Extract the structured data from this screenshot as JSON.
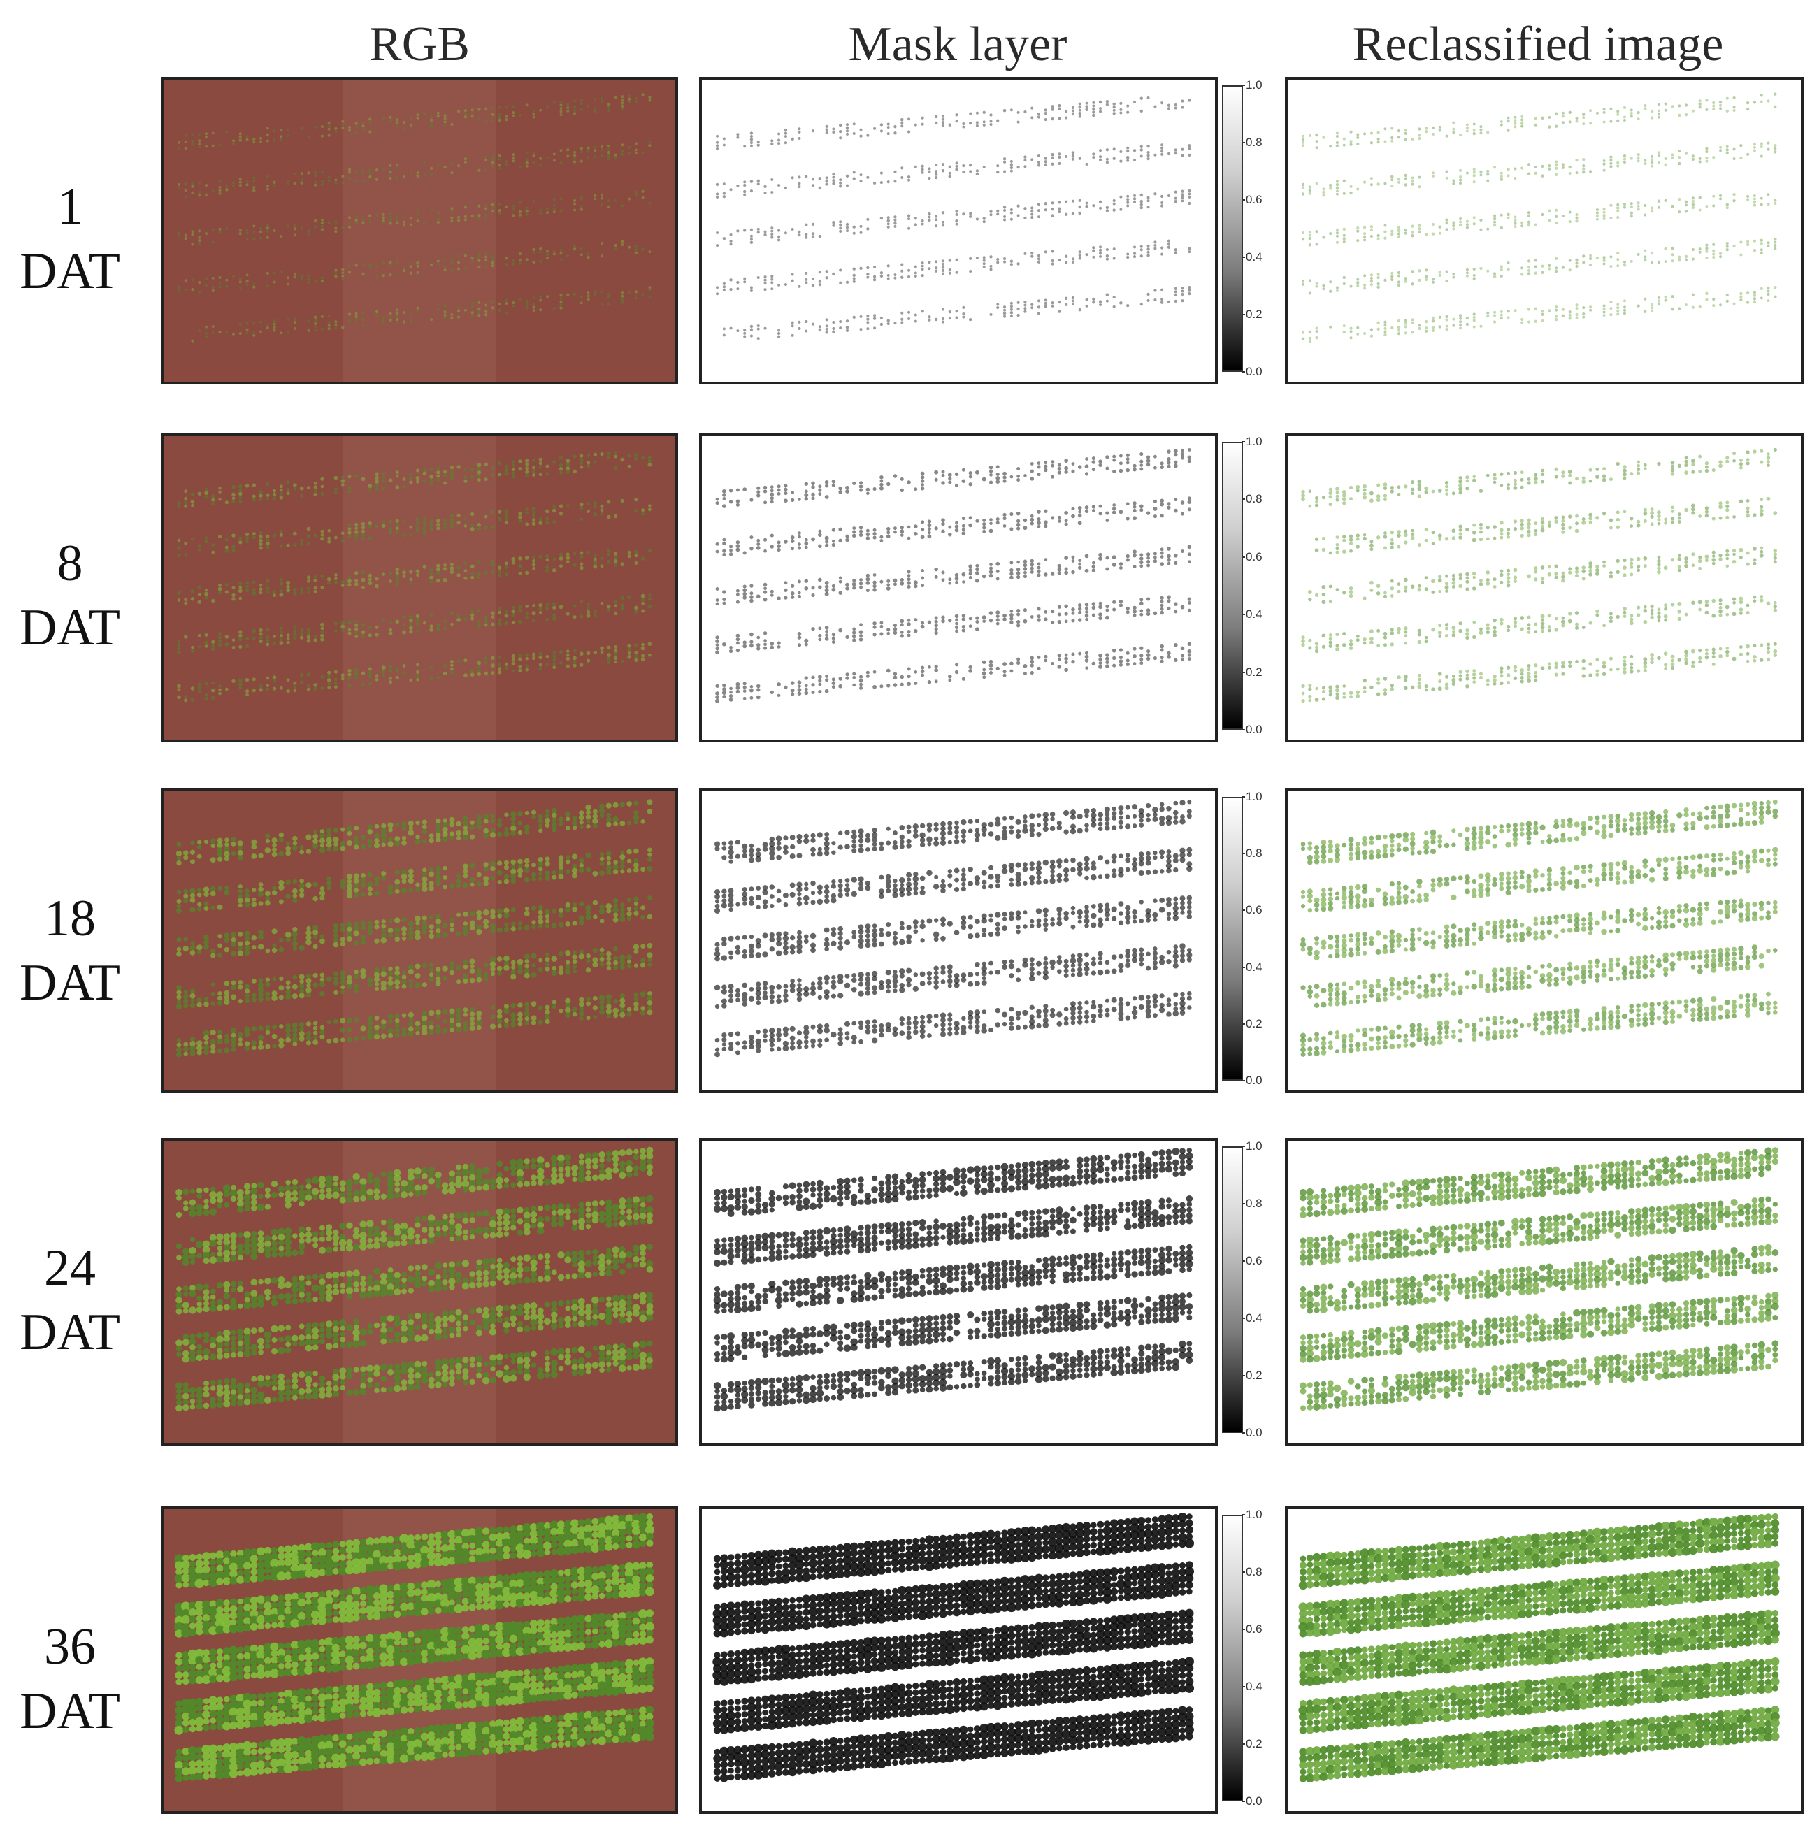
{
  "headers": {
    "rgb": "RGB",
    "mask": "Mask layer",
    "reclassified": "Reclassified image"
  },
  "colorbar_ticks": [
    "1.0",
    "0.8",
    "0.6",
    "0.4",
    "0.2",
    "0.0"
  ],
  "rows": [
    {
      "day": "1",
      "unit": "DAT",
      "canopy_density": 0.12
    },
    {
      "day": "8",
      "unit": "DAT",
      "canopy_density": 0.25
    },
    {
      "day": "18",
      "unit": "DAT",
      "canopy_density": 0.5
    },
    {
      "day": "24",
      "unit": "DAT",
      "canopy_density": 0.7
    },
    {
      "day": "36",
      "unit": "DAT",
      "canopy_density": 0.95
    }
  ],
  "colors": {
    "soil": "#8a4a40",
    "soil_light": "#a0685c",
    "plant": "#7fbf3a",
    "plant_dark": "#4e8c28",
    "mask_plant": "#111111",
    "recl_plant": "#6ea83e"
  }
}
